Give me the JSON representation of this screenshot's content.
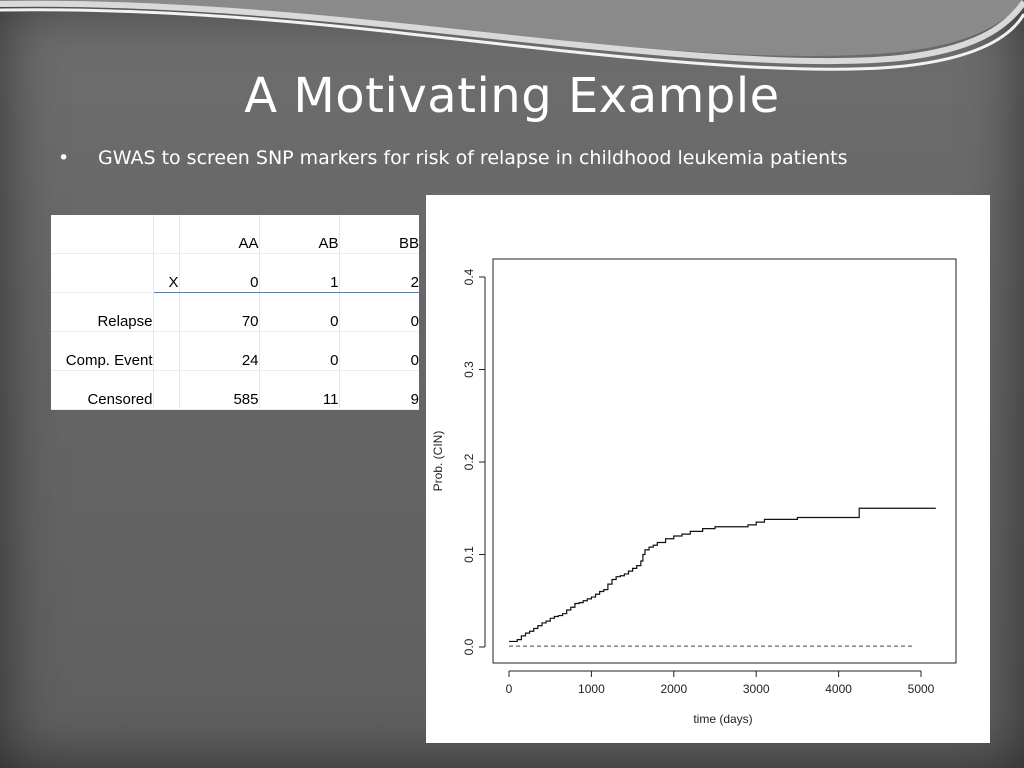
{
  "slide": {
    "title": "A Motivating Example",
    "bullet": "GWAS to screen SNP markers for risk of relapse in childhood leukemia patients",
    "bullet_marker": "•"
  },
  "table": {
    "header": [
      "",
      "",
      "AA",
      "AB",
      "BB"
    ],
    "rows": [
      [
        "",
        "X",
        "0",
        "1",
        "2"
      ],
      [
        "Relapse",
        "",
        "70",
        "0",
        "0"
      ],
      [
        "Comp. Event",
        "",
        "24",
        "0",
        "0"
      ],
      [
        "Censored",
        "",
        "585",
        "11",
        "9"
      ]
    ]
  },
  "chart_data": {
    "type": "line",
    "xlabel": "time (days)",
    "ylabel": "Prob. (CIN)",
    "xlim": [
      0,
      5200
    ],
    "ylim": [
      0,
      0.4
    ],
    "x_ticks": [
      0,
      1000,
      2000,
      3000,
      4000,
      5000
    ],
    "y_ticks": [
      "0.0",
      "0.1",
      "0.2",
      "0.3",
      "0.4"
    ],
    "series": [
      {
        "style": "solid-step",
        "x": [
          0,
          100,
          150,
          200,
          250,
          300,
          350,
          400,
          450,
          500,
          550,
          600,
          650,
          700,
          750,
          800,
          850,
          900,
          950,
          1000,
          1050,
          1100,
          1150,
          1200,
          1250,
          1300,
          1350,
          1400,
          1450,
          1500,
          1550,
          1600,
          1625,
          1650,
          1700,
          1750,
          1800,
          1900,
          2000,
          2100,
          2200,
          2350,
          2500,
          2700,
          2900,
          3000,
          3100,
          3500,
          4000,
          4250,
          5180
        ],
        "y": [
          0.006,
          0.008,
          0.012,
          0.015,
          0.017,
          0.02,
          0.023,
          0.026,
          0.028,
          0.031,
          0.033,
          0.034,
          0.036,
          0.04,
          0.043,
          0.047,
          0.048,
          0.05,
          0.052,
          0.054,
          0.057,
          0.06,
          0.062,
          0.068,
          0.073,
          0.076,
          0.077,
          0.079,
          0.082,
          0.085,
          0.088,
          0.093,
          0.1,
          0.105,
          0.108,
          0.11,
          0.113,
          0.117,
          0.12,
          0.122,
          0.125,
          0.128,
          0.13,
          0.13,
          0.132,
          0.135,
          0.138,
          0.14,
          0.14,
          0.15,
          0.15
        ]
      },
      {
        "style": "dashed",
        "x": [
          0,
          4900
        ],
        "y": [
          0.001,
          0.001
        ]
      }
    ]
  }
}
